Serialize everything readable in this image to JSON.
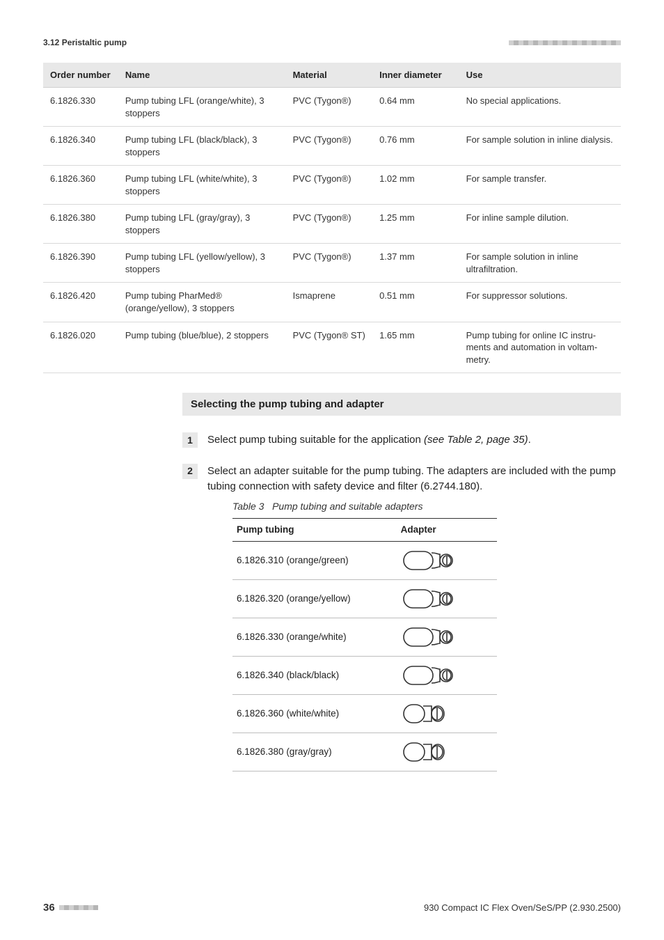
{
  "header": {
    "section_label": "3.12 Peristaltic pump",
    "decor_count": 23
  },
  "table_main": {
    "columns": [
      "Order num­ber",
      "Name",
      "Material",
      "Inner diame­ter",
      "Use"
    ],
    "rows": [
      {
        "order": "6.1826.330",
        "name": "Pump tubing LFL (orange/white), 3 stoppers",
        "material": "PVC (Tygon®)",
        "diameter": "0.64 mm",
        "use": "No special applications."
      },
      {
        "order": "6.1826.340",
        "name": "Pump tubing LFL (black/black), 3 stoppers",
        "material": "PVC (Tygon®)",
        "diameter": "0.76 mm",
        "use": "For sample solution in inline dial­ysis."
      },
      {
        "order": "6.1826.360",
        "name": "Pump tubing LFL (white/white), 3 stoppers",
        "material": "PVC (Tygon®)",
        "diameter": "1.02 mm",
        "use": "For sample transfer."
      },
      {
        "order": "6.1826.380",
        "name": "Pump tubing LFL (gray/gray), 3 stoppers",
        "material": "PVC (Tygon®)",
        "diameter": "1.25 mm",
        "use": "For inline sample dilution."
      },
      {
        "order": "6.1826.390",
        "name": "Pump tubing LFL (yellow/yellow), 3 stoppers",
        "material": "PVC (Tygon®)",
        "diameter": "1.37 mm",
        "use": "For sample solution in inline ultrafiltration."
      },
      {
        "order": "6.1826.420",
        "name": "Pump tubing PharMed® (orange/yellow), 3 stoppers",
        "material": "Ismaprene",
        "diameter": "0.51 mm",
        "use": "For suppressor solutions."
      },
      {
        "order": "6.1826.020",
        "name": "Pump tubing (blue/blue), 2 stoppers",
        "material": "PVC (Tygon® ST)",
        "diameter": "1.65 mm",
        "use": "Pump tubing for online IC instru­ments and automation in voltam­metry."
      }
    ]
  },
  "section_heading": "Selecting the pump tubing and adapter",
  "steps": [
    {
      "num": "1",
      "text_pre": "Select pump tubing suitable for the application ",
      "text_em": "(see Table 2, page 35)",
      "text_post": "."
    },
    {
      "num": "2",
      "text_pre": "Select an adapter suitable for the pump tubing. The adapters are included with the pump tubing connection with safety device and fil­ter (6.2744.180).",
      "text_em": "",
      "text_post": ""
    }
  ],
  "table3": {
    "caption_label": "Table 3",
    "caption_text": "Pump tubing and suitable adapters",
    "columns": [
      "Pump tubing",
      "Adapter"
    ],
    "rows": [
      {
        "pt": "6.1826.310 (orange/green)",
        "adapter_variant": "wide"
      },
      {
        "pt": "6.1826.320 (orange/yellow)",
        "adapter_variant": "wide"
      },
      {
        "pt": "6.1826.330 (orange/white)",
        "adapter_variant": "wide"
      },
      {
        "pt": "6.1826.340 (black/black)",
        "adapter_variant": "wide"
      },
      {
        "pt": "6.1826.360 (white/white)",
        "adapter_variant": "narrow"
      },
      {
        "pt": "6.1826.380 (gray/gray)",
        "adapter_variant": "narrow"
      }
    ]
  },
  "footer": {
    "page_number": "36",
    "decor_count": 8,
    "doc_ref": "930 Compact IC Flex Oven/SeS/PP (2.930.2500)"
  },
  "style": {
    "colors": {
      "text": "#333333",
      "heading_bg": "#e8e8e8",
      "row_border": "#d9d9d9",
      "header_border": "#cfcfcf",
      "adapter_border_strong": "#333333",
      "adapter_border": "#bdbdbd",
      "decor_light": "#d0d0d0",
      "decor_dark": "#b5b5b5",
      "background": "#ffffff"
    },
    "fonts": {
      "base_pt": 13,
      "heading_pt": 15,
      "body_pt": 15,
      "caption_pt": 14
    }
  }
}
